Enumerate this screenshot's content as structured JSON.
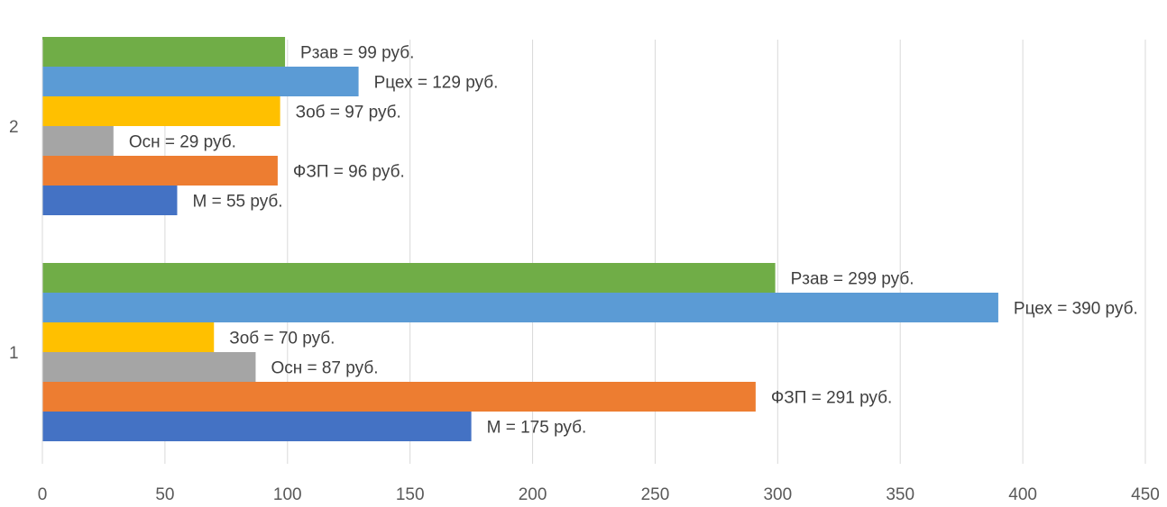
{
  "chart_data": {
    "type": "bar",
    "orientation": "horizontal",
    "categories": [
      "1",
      "2"
    ],
    "xlim": [
      0,
      450
    ],
    "xticks": [
      0,
      50,
      100,
      150,
      200,
      250,
      300,
      350,
      400,
      450
    ],
    "xtick_labels": [
      "0",
      "50",
      "100",
      "150",
      "200",
      "250",
      "300",
      "350",
      "400",
      "450"
    ],
    "grid": "vertical",
    "legend": "none",
    "series": [
      {
        "color": "#4472c4",
        "values": [
          175,
          55
        ],
        "labels": [
          "М = 175 руб.",
          "М = 55 руб."
        ]
      },
      {
        "color": "#ed7d31",
        "values": [
          291,
          96
        ],
        "labels": [
          "ФЗП = 291 руб.",
          "ФЗП = 96 руб."
        ]
      },
      {
        "color": "#a5a5a5",
        "values": [
          87,
          29
        ],
        "labels": [
          "Осн = 87 руб.",
          "Осн = 29 руб."
        ]
      },
      {
        "color": "#ffc000",
        "values": [
          70,
          97
        ],
        "labels": [
          "Зоб = 70 руб.",
          "Зоб = 97 руб."
        ]
      },
      {
        "color": "#5b9bd5",
        "values": [
          390,
          129
        ],
        "labels": [
          "Рцех = 390 руб.",
          "Рцех = 129 руб."
        ]
      },
      {
        "color": "#70ad47",
        "values": [
          299,
          99
        ],
        "labels": [
          "Рзав = 299 руб.",
          "Рзав = 99 руб."
        ]
      }
    ]
  }
}
